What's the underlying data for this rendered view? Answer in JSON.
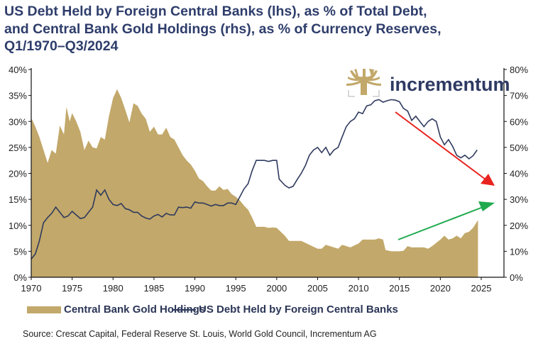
{
  "chart_data": {
    "type": "area+line",
    "title": [
      "US Debt Held by Foreign Central Banks (lhs), as % of Total Debt,",
      "and Central Bank Gold Holdings (rhs), as % of Currency Reserves,",
      "Q1/1970–Q3/2024"
    ],
    "x_ticks": [
      "1970",
      "1975",
      "1980",
      "1985",
      "1990",
      "1995",
      "2000",
      "2005",
      "2010",
      "2015",
      "2020",
      "2025"
    ],
    "xlim": [
      1970,
      2027.5
    ],
    "y_left": {
      "ticks": [
        "0%",
        "5%",
        "10%",
        "15%",
        "20%",
        "25%",
        "30%",
        "35%",
        "40%"
      ],
      "ylim": [
        0,
        40
      ]
    },
    "y_right": {
      "ticks": [
        "0%",
        "10%",
        "20%",
        "30%",
        "40%",
        "50%",
        "60%",
        "70%",
        "80%"
      ],
      "ylim": [
        0,
        80
      ]
    },
    "grid": false,
    "legend_placement": "bottom",
    "series": [
      {
        "name": "Central Bank Gold Holdings",
        "type": "area",
        "axis": "right",
        "color": "#c2a86a",
        "x": [
          1970,
          1970.5,
          1971,
          1971.5,
          1972,
          1972.5,
          1973,
          1973.5,
          1974,
          1974.3,
          1974.7,
          1975,
          1975.5,
          1976,
          1976.5,
          1977,
          1977.5,
          1978,
          1978.5,
          1979,
          1979.5,
          1980,
          1980.5,
          1981,
          1981.5,
          1982,
          1982.5,
          1983,
          1983.5,
          1984,
          1984.5,
          1985,
          1985.5,
          1986,
          1986.5,
          1987,
          1987.5,
          1988,
          1988.5,
          1989,
          1989.5,
          1990,
          1990.5,
          1991,
          1991.5,
          1992,
          1992.5,
          1993,
          1993.5,
          1994,
          1994.5,
          1995,
          1995.5,
          1996,
          1996.5,
          1997,
          1997.5,
          1998,
          1998.5,
          1999,
          1999.5,
          2000,
          2001,
          2001.5,
          2002,
          2003,
          2004,
          2005,
          2005.5,
          2006,
          2007,
          2007.5,
          2008,
          2009,
          2010,
          2010.5,
          2011,
          2012,
          2012.5,
          2013,
          2013.3,
          2014,
          2015,
          2015.5,
          2016,
          2016.5,
          2017,
          2018,
          2018.5,
          2019,
          2020,
          2020.5,
          2021,
          2021.5,
          2022,
          2022.5,
          2023,
          2023.5,
          2024,
          2024.6
        ],
        "values": [
          61.4,
          58,
          54,
          49,
          44,
          49,
          47.6,
          58.4,
          55,
          65.6,
          60,
          63.2,
          60,
          56,
          49,
          52.6,
          50,
          49.6,
          54,
          53,
          62,
          69,
          72.4,
          69,
          64.4,
          59.6,
          67,
          66,
          63,
          61,
          56,
          58,
          55,
          55,
          57.6,
          54,
          53,
          50,
          47,
          45,
          43.4,
          41,
          38,
          37,
          35,
          33.4,
          33.4,
          35,
          33.6,
          34,
          32,
          31,
          29.6,
          27.6,
          26,
          23,
          19.4,
          19.4,
          19.4,
          19,
          19.2,
          19,
          16,
          14,
          14,
          14,
          12.5,
          11,
          11,
          12.5,
          11.5,
          11,
          12.5,
          11.5,
          13,
          14.5,
          14.5,
          14.5,
          15,
          14.5,
          10.5,
          10,
          10,
          10.2,
          12,
          11.5,
          11.5,
          11.5,
          11,
          12,
          14.5,
          16,
          14.5,
          15,
          16,
          15,
          17,
          17.5,
          19,
          22
        ]
      },
      {
        "name": "US Debt Held by Foreign Central Banks",
        "type": "line",
        "axis": "left",
        "color": "#2f3a5e",
        "x": [
          1970,
          1970.5,
          1971,
          1971.5,
          1972,
          1972.5,
          1973,
          1973.5,
          1974,
          1974.5,
          1975,
          1975.5,
          1976,
          1976.5,
          1977,
          1977.5,
          1978,
          1978.5,
          1979,
          1979.5,
          1980,
          1980.5,
          1981,
          1981.5,
          1982,
          1982.5,
          1983,
          1983.5,
          1984,
          1984.5,
          1985,
          1985.5,
          1986,
          1986.5,
          1987,
          1987.5,
          1988,
          1988.5,
          1989,
          1989.5,
          1990,
          1990.5,
          1991,
          1991.5,
          1992,
          1992.5,
          1993,
          1993.5,
          1994,
          1994.5,
          1995,
          1995.5,
          1996,
          1996.5,
          1997,
          1997.5,
          1998,
          1998.5,
          1999,
          1999.5,
          2000,
          2000.3,
          2001,
          2001.5,
          2002,
          2002.5,
          2003,
          2003.5,
          2004,
          2004.5,
          2005,
          2005.5,
          2006,
          2006.5,
          2007,
          2007.5,
          2008,
          2008.5,
          2009,
          2009.5,
          2010,
          2010.5,
          2011,
          2011.5,
          2012,
          2012.5,
          2013,
          2013.5,
          2014,
          2014.5,
          2015,
          2015.5,
          2016,
          2016.5,
          2017,
          2017.5,
          2018,
          2018.5,
          2019,
          2019.5,
          2020,
          2020.5,
          2021,
          2021.5,
          2022,
          2022.5,
          2023,
          2023.5,
          2024,
          2024.5
        ],
        "values": [
          3.5,
          4.5,
          7,
          10.5,
          11.5,
          12.3,
          13.5,
          12.5,
          11.5,
          11.8,
          12.7,
          12,
          11.3,
          11.5,
          12.5,
          13.5,
          16.8,
          15.8,
          16.8,
          15,
          14,
          13.8,
          14.2,
          13.2,
          13,
          12.5,
          12.5,
          11.8,
          11.4,
          11.2,
          11.8,
          12.1,
          11.6,
          12.3,
          12,
          12,
          13.5,
          13.4,
          13.5,
          13.3,
          14.5,
          14.3,
          14.3,
          14,
          13.7,
          14,
          13.8,
          13.8,
          14.3,
          14.3,
          14,
          15.5,
          17,
          18,
          20.5,
          22.5,
          22.5,
          22.5,
          22.3,
          22.5,
          22.5,
          18.9,
          17.7,
          17.2,
          17.5,
          18.8,
          20,
          21.5,
          23.5,
          24.5,
          25,
          24,
          25,
          23.5,
          24.5,
          25,
          27,
          29,
          30,
          30.5,
          31.8,
          31.5,
          33,
          33.2,
          34,
          34.2,
          33.7,
          34,
          34.2,
          34.1,
          33.8,
          32.5,
          32,
          30.2,
          31,
          30,
          29,
          30,
          30.5,
          30,
          27,
          25.5,
          26.5,
          25.2,
          23.5,
          23,
          23.5,
          22.8,
          23.4,
          24.5
        ]
      }
    ],
    "annotations": [
      {
        "type": "arrow",
        "color": "#e8231f",
        "direction": "down-right"
      },
      {
        "type": "arrow",
        "color": "#1faa4e",
        "direction": "up-right"
      }
    ]
  },
  "logo": {
    "text": "incrementum",
    "color": "#c2a86a"
  },
  "legend": {
    "gold": "Central Bank Gold Holdings",
    "debt": "US Debt Held by Foreign Central Banks"
  },
  "source": "Source: Crescat Capital, Federal Reserve St. Louis, World Gold Council, Incrementum AG"
}
